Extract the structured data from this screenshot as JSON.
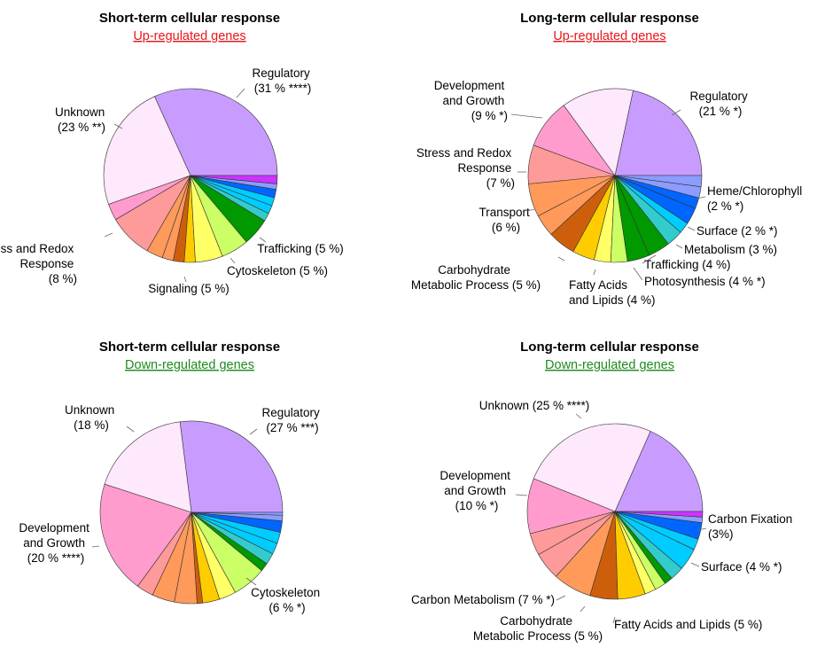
{
  "colors": {
    "up": "#e8161b",
    "down": "#1f8a1f",
    "regulatory": "#c89cff",
    "unknown": "#fde8fc",
    "development": "#ff9ccd",
    "stress": "#ff9a9a",
    "transport": "#ff9a5a",
    "carbohydrate": "#cd5f0c",
    "fatty": "#ffcc00",
    "signaling": "#ffff66",
    "lightgreen": "#ccff66",
    "green": "#009900",
    "teal": "#33cccc",
    "cyan": "#00ccff",
    "blue": "#0066ff",
    "periwinkle": "#8c9cff",
    "magenta": "#cc33ff"
  },
  "chart_data": [
    {
      "type": "pie",
      "title": "Short-term cellular response",
      "subtitle": "Up-regulated genes",
      "subtitle_color": "up",
      "slices": [
        {
          "value": 31,
          "color": "regulatory",
          "label": [
            "Regulatory",
            "(31 % ****)"
          ]
        },
        {
          "value": 23,
          "color": "unknown",
          "label": [
            "Unknown",
            "(23 % **)"
          ]
        },
        {
          "value": 3,
          "color": "development"
        },
        {
          "value": 8,
          "color": "stress",
          "label": [
            "Stress and Redox",
            "Response",
            "(8 %)"
          ]
        },
        {
          "value": 3,
          "color": "transport"
        },
        {
          "value": 2,
          "color": "transport"
        },
        {
          "value": 2,
          "color": "carbohydrate"
        },
        {
          "value": 2,
          "color": "fatty"
        },
        {
          "value": 5,
          "color": "signaling",
          "label": [
            "Signaling (5 %)"
          ]
        },
        {
          "value": 5,
          "color": "lightgreen",
          "label": [
            "Cytoskeleton (5 %)"
          ]
        },
        {
          "value": 5,
          "color": "green",
          "label": [
            "Trafficking (5 %)"
          ]
        },
        {
          "value": 1.5,
          "color": "teal"
        },
        {
          "value": 1.5,
          "color": "cyan"
        },
        {
          "value": 1.5,
          "color": "cyan"
        },
        {
          "value": 1.5,
          "color": "blue"
        },
        {
          "value": 1,
          "color": "periwinkle"
        },
        {
          "value": 1.5,
          "color": "magenta"
        }
      ]
    },
    {
      "type": "pie",
      "title": "Long-term cellular response",
      "subtitle": "Up-regulated genes",
      "subtitle_color": "up",
      "slices": [
        {
          "value": 21,
          "color": "regulatory",
          "label": [
            "Regulatory",
            "(21 % *)"
          ]
        },
        {
          "value": 13,
          "color": "unknown"
        },
        {
          "value": 9,
          "color": "development",
          "label": [
            "Development",
            "and Growth",
            "(9 % *)"
          ]
        },
        {
          "value": 7,
          "color": "stress",
          "label": [
            "Stress and Redox",
            "Response",
            "(7 %)"
          ]
        },
        {
          "value": 6,
          "color": "transport",
          "label": [
            "Transport",
            "(6 %)"
          ]
        },
        {
          "value": 4,
          "color": "transport"
        },
        {
          "value": 5,
          "color": "carbohydrate",
          "label": [
            "Carbohydrate",
            "Metabolic Process (5 %)"
          ]
        },
        {
          "value": 4,
          "color": "fatty",
          "label": [
            "Fatty Acids",
            "and Lipids (4 %)"
          ]
        },
        {
          "value": 3,
          "color": "signaling"
        },
        {
          "value": 3,
          "color": "lightgreen"
        },
        {
          "value": 4,
          "color": "green",
          "label": [
            "Photosynthesis (4 % *)"
          ]
        },
        {
          "value": 4,
          "color": "green",
          "label": [
            "Trafficking (4 %)"
          ]
        },
        {
          "value": 3,
          "color": "teal",
          "label": [
            "Metabolism (3 %)"
          ]
        },
        {
          "value": 2,
          "color": "cyan",
          "label": [
            "Surface (2 % *)"
          ]
        },
        {
          "value": 3,
          "color": "blue"
        },
        {
          "value": 2,
          "color": "blue"
        },
        {
          "value": 2,
          "color": "periwinkle",
          "label": [
            "Heme/Chlorophyll",
            "(2 % *)"
          ]
        },
        {
          "value": 2,
          "color": "periwinkle"
        }
      ]
    },
    {
      "type": "pie",
      "title": "Short-term cellular response",
      "subtitle": "Down-regulated genes",
      "subtitle_color": "down",
      "slices": [
        {
          "value": 27,
          "color": "regulatory",
          "label": [
            "Regulatory",
            "(27 % ***)"
          ]
        },
        {
          "value": 18,
          "color": "unknown",
          "label": [
            "Unknown",
            "(18 %)"
          ]
        },
        {
          "value": 20,
          "color": "development",
          "label": [
            "Development",
            "and Growth",
            "(20 % ****)"
          ]
        },
        {
          "value": 3,
          "color": "stress"
        },
        {
          "value": 4,
          "color": "transport"
        },
        {
          "value": 4,
          "color": "transport"
        },
        {
          "value": 1,
          "color": "carbohydrate"
        },
        {
          "value": 3,
          "color": "fatty"
        },
        {
          "value": 3,
          "color": "signaling"
        },
        {
          "value": 6,
          "color": "lightgreen",
          "label": [
            "Cytoskeleton",
            "(6 % *)"
          ]
        },
        {
          "value": 1.5,
          "color": "green"
        },
        {
          "value": 2,
          "color": "teal"
        },
        {
          "value": 2,
          "color": "cyan"
        },
        {
          "value": 2,
          "color": "cyan"
        },
        {
          "value": 2,
          "color": "blue"
        },
        {
          "value": 1,
          "color": "periwinkle"
        },
        {
          "value": 0.5,
          "color": "periwinkle"
        }
      ]
    },
    {
      "type": "pie",
      "title": "Long-term cellular response",
      "subtitle": "Down-regulated genes",
      "subtitle_color": "down",
      "slices": [
        {
          "value": 18,
          "color": "regulatory"
        },
        {
          "value": 25,
          "color": "unknown",
          "label": [
            "Unknown (25 % ****)"
          ]
        },
        {
          "value": 10,
          "color": "development",
          "label": [
            "Development",
            "and Growth",
            "(10 % *)"
          ]
        },
        {
          "value": 4,
          "color": "stress"
        },
        {
          "value": 5,
          "color": "stress"
        },
        {
          "value": 7,
          "color": "transport",
          "label": [
            "Carbon Metabolism (7 % *)"
          ]
        },
        {
          "value": 5,
          "color": "carbohydrate",
          "label": [
            "Carbohydrate",
            "Metabolic Process (5 %)"
          ]
        },
        {
          "value": 5,
          "color": "fatty",
          "label": [
            "Fatty Acids and Lipids (5 %)"
          ]
        },
        {
          "value": 2,
          "color": "signaling"
        },
        {
          "value": 2,
          "color": "lightgreen"
        },
        {
          "value": 1.5,
          "color": "green"
        },
        {
          "value": 2.5,
          "color": "teal"
        },
        {
          "value": 4,
          "color": "cyan",
          "label": [
            "Surface (4 % *)"
          ]
        },
        {
          "value": 2,
          "color": "cyan"
        },
        {
          "value": 3,
          "color": "blue",
          "label": [
            "Carbon Fixation",
            "(3%)"
          ]
        },
        {
          "value": 1,
          "color": "periwinkle"
        },
        {
          "value": 1,
          "color": "magenta"
        }
      ]
    }
  ]
}
